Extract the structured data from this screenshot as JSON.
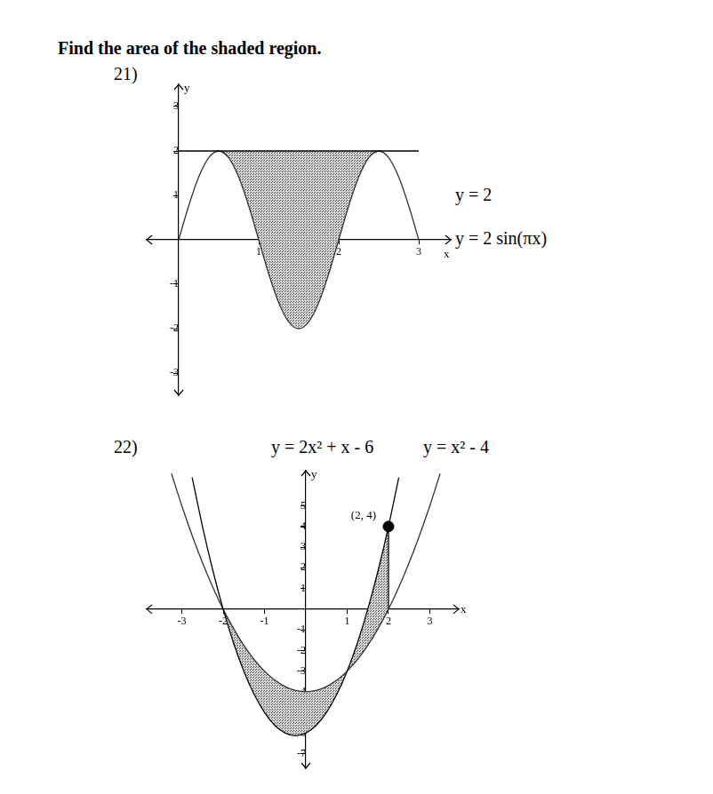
{
  "heading": "Find the area of the shaded region.",
  "chart_data": [
    {
      "type": "line",
      "title": "21)",
      "x_label": "x",
      "y_label": "y",
      "xlim": [
        -0.4,
        3.4
      ],
      "ylim": [
        -3.5,
        3.5
      ],
      "xticks": [
        1,
        2,
        3
      ],
      "yticks": [
        -3,
        -2,
        -1,
        1,
        2,
        3
      ],
      "grid": false,
      "series": [
        {
          "name": "y = 2",
          "color": "#000000",
          "x": [
            0,
            3
          ],
          "values": [
            2,
            2
          ]
        },
        {
          "name": "y = 2 sin(πx)",
          "color": "#333333",
          "x": [
            0,
            0.125,
            0.25,
            0.375,
            0.5,
            0.625,
            0.75,
            0.875,
            1,
            1.125,
            1.25,
            1.375,
            1.5,
            1.625,
            1.75,
            1.875,
            2,
            2.125,
            2.25,
            2.375,
            2.5,
            2.625,
            2.75,
            2.875,
            3
          ],
          "values": [
            0,
            0.765,
            1.414,
            1.848,
            2,
            1.848,
            1.414,
            0.765,
            0,
            -0.765,
            -1.414,
            -1.848,
            -2,
            -1.848,
            -1.414,
            -0.765,
            0,
            0.765,
            1.414,
            1.848,
            2,
            1.848,
            1.414,
            0.765,
            0
          ]
        }
      ],
      "shaded": {
        "between": [
          "y = 2",
          "y = 2 sin(πx)"
        ],
        "x": [
          0.5,
          2.5
        ]
      }
    },
    {
      "type": "line",
      "title": "22)",
      "x_label": "x",
      "y_label": "y",
      "xlim": [
        -3.85,
        3.7
      ],
      "ylim": [
        -7.7,
        6.7
      ],
      "xticks": [
        -3,
        -2,
        -1,
        1,
        2,
        3
      ],
      "yticks": [
        -7,
        -6,
        -5,
        -4,
        -3,
        -2,
        -1,
        1,
        2,
        3,
        4,
        5
      ],
      "grid": false,
      "series": [
        {
          "name": "y = 2x² + x - 6",
          "color": "#000000",
          "x": [
            -2.75,
            -2.5,
            -2.25,
            -2,
            -1.75,
            -1.5,
            -1.25,
            -1,
            -0.75,
            -0.5,
            -0.25,
            0,
            0.25,
            0.5,
            0.75,
            1,
            1.25,
            1.5,
            1.75,
            2,
            2.25
          ],
          "values": [
            6.375,
            4,
            1.875,
            0,
            -1.625,
            -3,
            -4.125,
            -5,
            -5.625,
            -6,
            -6.125,
            -6,
            -5.625,
            -5,
            -4.125,
            -3,
            -1.625,
            0,
            1.875,
            4,
            6.375
          ]
        },
        {
          "name": "y = x² - 4",
          "color": "#333333",
          "x": [
            -3.25,
            -3,
            -2.75,
            -2.5,
            -2.25,
            -2,
            -1.75,
            -1.5,
            -1.25,
            -1,
            -0.75,
            -0.5,
            -0.25,
            0,
            0.25,
            0.5,
            0.75,
            1,
            1.25,
            1.5,
            1.75,
            2,
            2.25,
            2.5,
            2.75,
            3,
            3.25
          ],
          "values": [
            6.5625,
            5,
            3.5625,
            2.25,
            1.0625,
            0,
            -0.9375,
            -1.75,
            -2.4375,
            -3,
            -3.4375,
            -3.75,
            -3.9375,
            -4,
            -3.9375,
            -3.75,
            -3.4375,
            -3,
            -2.4375,
            -1.75,
            -0.9375,
            0,
            1.0625,
            2.25,
            3.5625,
            5,
            6.5625
          ]
        }
      ],
      "points": [
        {
          "x": 2,
          "y": 4,
          "label": "(2, 4)"
        }
      ],
      "shaded": {
        "between": [
          "y = 2x² + x - 6",
          "y = x² - 4"
        ],
        "x": [
          -2,
          2
        ]
      }
    }
  ]
}
